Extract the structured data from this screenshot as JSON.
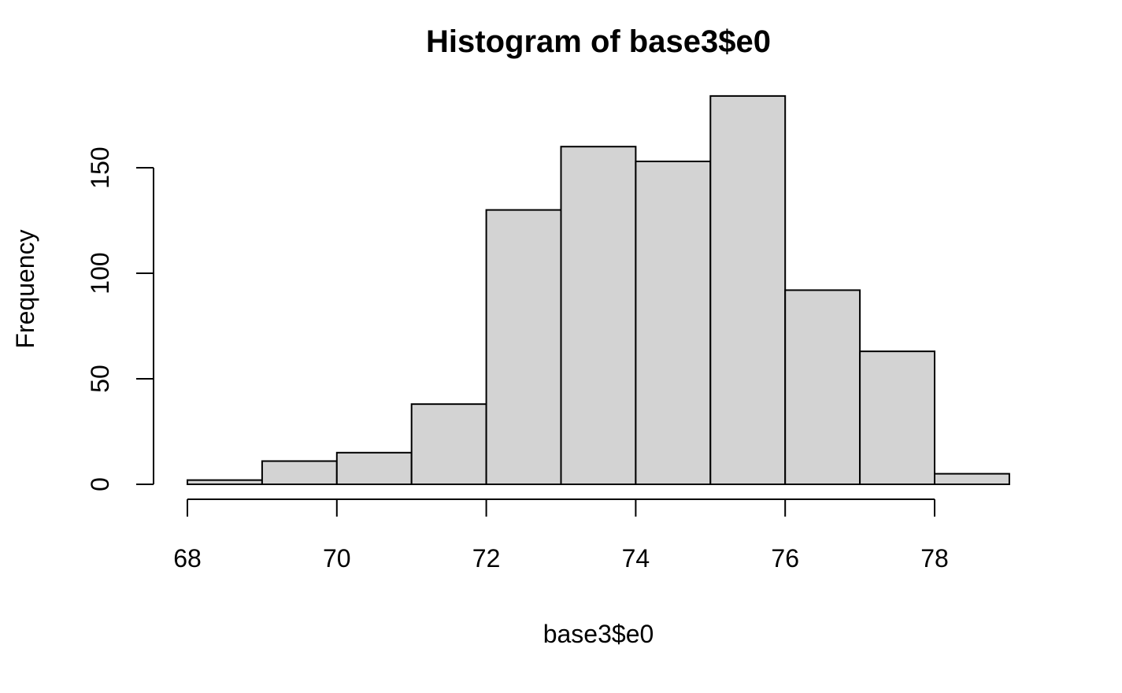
{
  "chart_data": {
    "type": "bar",
    "subtype": "histogram",
    "title": "Histogram of base3$e0",
    "xlabel": "base3$e0",
    "ylabel": "Frequency",
    "bins": [
      {
        "from": 68,
        "to": 69,
        "count": 2
      },
      {
        "from": 69,
        "to": 70,
        "count": 11
      },
      {
        "from": 70,
        "to": 71,
        "count": 15
      },
      {
        "from": 71,
        "to": 72,
        "count": 38
      },
      {
        "from": 72,
        "to": 73,
        "count": 130
      },
      {
        "from": 73,
        "to": 74,
        "count": 160
      },
      {
        "from": 74,
        "to": 75,
        "count": 153
      },
      {
        "from": 75,
        "to": 76,
        "count": 184
      },
      {
        "from": 76,
        "to": 77,
        "count": 92
      },
      {
        "from": 77,
        "to": 78,
        "count": 63
      },
      {
        "from": 78,
        "to": 79,
        "count": 5
      }
    ],
    "x_ticks": [
      "68",
      "70",
      "72",
      "74",
      "76",
      "78"
    ],
    "y_ticks": [
      "0",
      "50",
      "100",
      "150"
    ],
    "xlim": [
      68,
      79
    ],
    "ylim": [
      0,
      184
    ],
    "bar_color": "#d3d3d3",
    "grid": false
  }
}
